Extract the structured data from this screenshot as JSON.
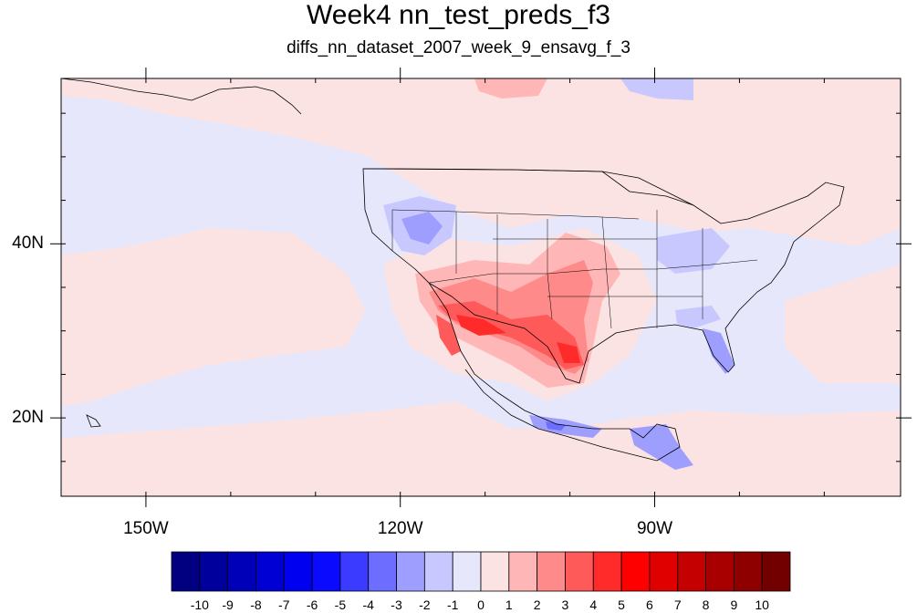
{
  "title": "Week4 nn_test_preds_f3",
  "subtitle": "diffs_nn_dataset_2007_week_9_ensavg_f_3",
  "map": {
    "lon_range": [
      -160,
      -61
    ],
    "lat_range": [
      11,
      59
    ],
    "lat_ticks": [
      {
        "value": 40,
        "label": "40N"
      },
      {
        "value": 20,
        "label": "20N"
      }
    ],
    "lon_ticks": [
      {
        "value": -150,
        "label": "150W"
      },
      {
        "value": -120,
        "label": "120W"
      },
      {
        "value": -90,
        "label": "90W"
      }
    ]
  },
  "colorbar": {
    "labels": [
      "-10",
      "-9",
      "-8",
      "-7",
      "-6",
      "-5",
      "-4",
      "-3",
      "-2",
      "-1",
      "0",
      "1",
      "2",
      "3",
      "4",
      "5",
      "6",
      "7",
      "8",
      "9",
      "10"
    ],
    "colors": [
      "#000080",
      "#00009c",
      "#0000b8",
      "#0000d4",
      "#0000f0",
      "#0a0aff",
      "#3b3bff",
      "#6d6dff",
      "#9e9eff",
      "#c8c8ff",
      "#e7e7fb",
      "#fbe3e3",
      "#ffb6b6",
      "#ff8a8a",
      "#ff5a5a",
      "#ff2a2a",
      "#ff0000",
      "#e00000",
      "#c40000",
      "#a80000",
      "#8e0000",
      "#720000"
    ]
  }
}
